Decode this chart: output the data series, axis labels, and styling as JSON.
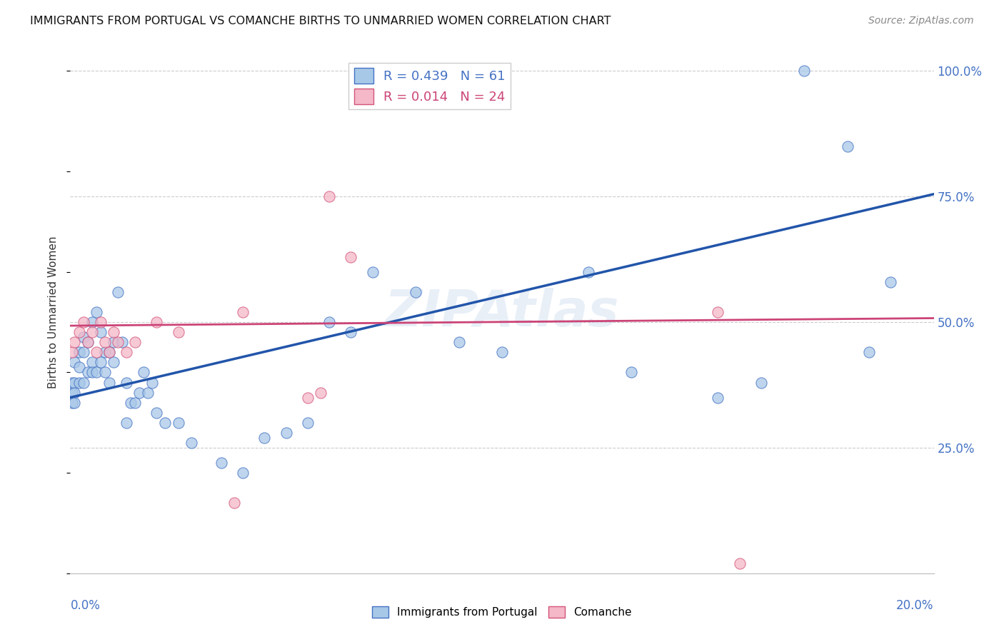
{
  "title": "IMMIGRANTS FROM PORTUGAL VS COMANCHE BIRTHS TO UNMARRIED WOMEN CORRELATION CHART",
  "source": "Source: ZipAtlas.com",
  "ylabel": "Births to Unmarried Women",
  "legend_label_blue": "Immigrants from Portugal",
  "legend_label_pink": "Comanche",
  "legend_blue": "R = 0.439   N = 61",
  "legend_pink": "R = 0.014   N = 24",
  "blue_fill": "#a8c8e8",
  "blue_edge": "#4472c4",
  "pink_fill": "#f4b8c8",
  "pink_edge": "#d4547a",
  "trendline_blue": "#2255aa",
  "trendline_pink": "#cc4477",
  "axis_label_color": "#4472c4",
  "grid_color": "#cccccc",
  "xmin": 0.0,
  "xmax": 0.2,
  "ymin": 0.0,
  "ymax": 1.04,
  "blue_trend_x0": 0.0,
  "blue_trend_y0": 0.35,
  "blue_trend_x1": 0.2,
  "blue_trend_y1": 0.755,
  "pink_trend_x0": 0.0,
  "pink_trend_y0": 0.493,
  "pink_trend_x1": 0.2,
  "pink_trend_y1": 0.508,
  "blue_x": [
    0.0005,
    0.0005,
    0.0005,
    0.001,
    0.001,
    0.001,
    0.001,
    0.002,
    0.002,
    0.002,
    0.003,
    0.003,
    0.003,
    0.004,
    0.004,
    0.005,
    0.005,
    0.005,
    0.006,
    0.006,
    0.007,
    0.007,
    0.008,
    0.008,
    0.009,
    0.009,
    0.01,
    0.01,
    0.011,
    0.012,
    0.013,
    0.013,
    0.014,
    0.015,
    0.016,
    0.017,
    0.018,
    0.019,
    0.02,
    0.022,
    0.025,
    0.028,
    0.035,
    0.04,
    0.045,
    0.05,
    0.055,
    0.06,
    0.065,
    0.07,
    0.08,
    0.09,
    0.1,
    0.12,
    0.13,
    0.15,
    0.16,
    0.17,
    0.18,
    0.19,
    0.185
  ],
  "blue_y": [
    0.36,
    0.34,
    0.38,
    0.42,
    0.38,
    0.36,
    0.34,
    0.41,
    0.44,
    0.38,
    0.44,
    0.47,
    0.38,
    0.46,
    0.4,
    0.5,
    0.42,
    0.4,
    0.52,
    0.4,
    0.48,
    0.42,
    0.44,
    0.4,
    0.44,
    0.38,
    0.46,
    0.42,
    0.56,
    0.46,
    0.38,
    0.3,
    0.34,
    0.34,
    0.36,
    0.4,
    0.36,
    0.38,
    0.32,
    0.3,
    0.3,
    0.26,
    0.22,
    0.2,
    0.27,
    0.28,
    0.3,
    0.5,
    0.48,
    0.6,
    0.56,
    0.46,
    0.44,
    0.6,
    0.4,
    0.35,
    0.38,
    1.0,
    0.85,
    0.58,
    0.44
  ],
  "pink_x": [
    0.0005,
    0.001,
    0.002,
    0.003,
    0.004,
    0.005,
    0.006,
    0.007,
    0.008,
    0.009,
    0.01,
    0.011,
    0.013,
    0.015,
    0.02,
    0.025,
    0.038,
    0.04,
    0.055,
    0.06,
    0.065,
    0.15,
    0.155,
    0.058
  ],
  "pink_y": [
    0.44,
    0.46,
    0.48,
    0.5,
    0.46,
    0.48,
    0.44,
    0.5,
    0.46,
    0.44,
    0.48,
    0.46,
    0.44,
    0.46,
    0.5,
    0.48,
    0.14,
    0.52,
    0.35,
    0.75,
    0.63,
    0.52,
    0.02,
    0.36
  ]
}
